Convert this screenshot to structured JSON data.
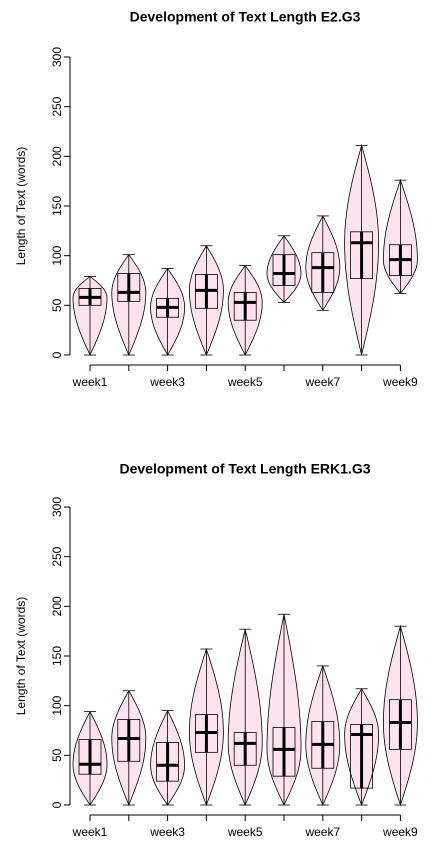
{
  "chart_data": [
    {
      "type": "violin",
      "title": "Development of Text Length E2.G3",
      "ylabel": "Length of Text (words)",
      "categories": [
        "week1",
        null,
        "week3",
        null,
        "week5",
        null,
        "week7",
        null,
        "week9"
      ],
      "min": [
        0,
        0,
        0,
        0,
        0,
        53,
        45,
        0,
        62
      ],
      "q1": [
        50,
        54,
        38,
        47,
        35,
        70,
        63,
        77,
        80
      ],
      "median": [
        58,
        63,
        48,
        65,
        53,
        82,
        88,
        113,
        96
      ],
      "q3": [
        67,
        82,
        57,
        81,
        63,
        101,
        103,
        124,
        111
      ],
      "max": [
        79,
        101,
        87,
        110,
        90,
        120,
        140,
        211,
        176
      ],
      "color": "#ffe4ef",
      "ylim": [
        0,
        300
      ],
      "yticks": [
        0,
        50,
        100,
        150,
        200,
        250,
        300
      ]
    },
    {
      "type": "violin",
      "title": "Development of Text Length ERK1.G3",
      "ylabel": "Length of Text (words)",
      "categories": [
        "week1",
        null,
        "week3",
        null,
        "week5",
        null,
        "week7",
        null,
        "week9"
      ],
      "min": [
        0,
        0,
        0,
        0,
        0,
        0,
        0,
        0,
        0
      ],
      "q1": [
        31,
        44,
        24,
        53,
        40,
        29,
        37,
        17,
        56
      ],
      "median": [
        41,
        67,
        40,
        73,
        62,
        56,
        61,
        71,
        83
      ],
      "q3": [
        66,
        86,
        63,
        91,
        73,
        78,
        84,
        81,
        106
      ],
      "max": [
        94,
        115,
        95,
        157,
        177,
        192,
        140,
        117,
        180
      ],
      "color": "#ffe4ef",
      "ylim": [
        0,
        300
      ],
      "yticks": [
        0,
        50,
        100,
        150,
        200,
        250,
        300
      ]
    }
  ]
}
